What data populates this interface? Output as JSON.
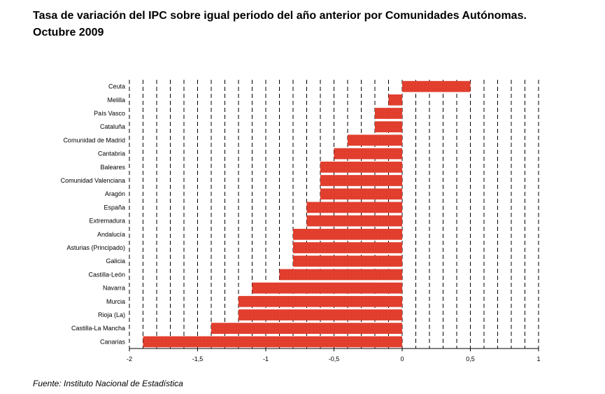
{
  "header": {
    "title_line1": "Tasa de variación del IPC sobre igual periodo del año anterior por Comunidades Autónomas.",
    "title_line2": "Octubre 2009"
  },
  "footer": {
    "source": "Fuente: Instituto Nacional de Estadística"
  },
  "chart_data": {
    "type": "bar",
    "orientation": "horizontal",
    "categories": [
      "Ceuta",
      "Melilla",
      "País Vasco",
      "Cataluña",
      "Comunidad de Madrid",
      "Cantabria",
      "Baleares",
      "Comunidad Valenciana",
      "Aragón",
      "España",
      "Extremadura",
      "Andalucía",
      "Asturias (Principado)",
      "Galicia",
      "Castilla-León",
      "Navarra",
      "Murcia",
      "Rioja (La)",
      "Castilla-La Mancha",
      "Canarias"
    ],
    "values": [
      0.5,
      -0.1,
      -0.2,
      -0.2,
      -0.4,
      -0.5,
      -0.6,
      -0.6,
      -0.6,
      -0.7,
      -0.7,
      -0.8,
      -0.8,
      -0.8,
      -0.9,
      -1.1,
      -1.2,
      -1.2,
      -1.4,
      -1.9
    ],
    "xlim": [
      -2,
      1
    ],
    "xticks": [
      "-2",
      "-1,5",
      "-1",
      "-0,5",
      "0",
      "0,5",
      "1"
    ],
    "grid": "vertical dashed",
    "bar_color": "#e03a2a"
  }
}
